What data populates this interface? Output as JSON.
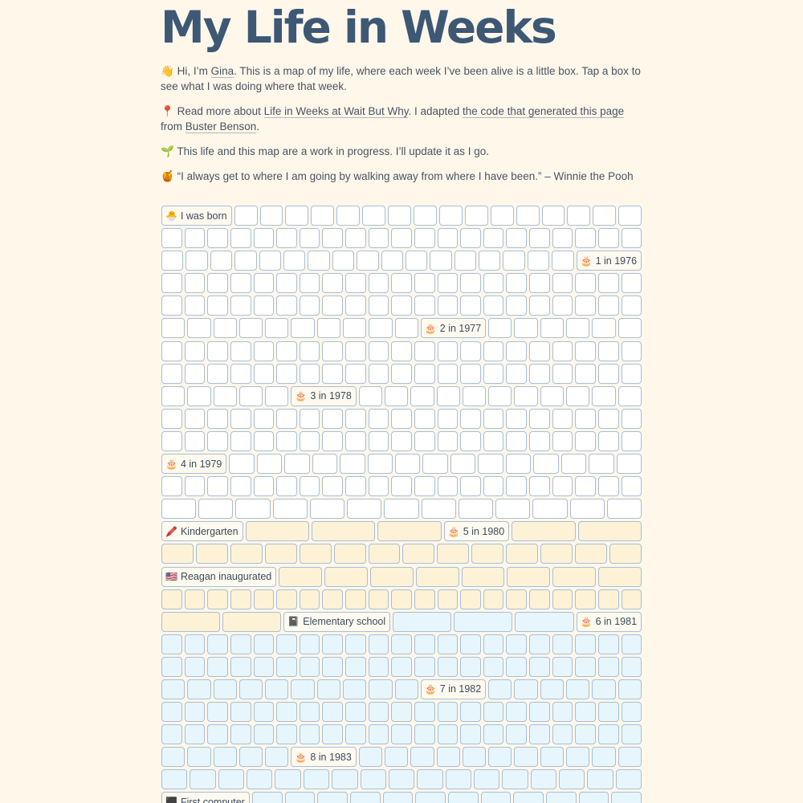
{
  "page": {
    "title": "My Life in Weeks",
    "intro": {
      "p1": {
        "emoji": "👋",
        "before": "Hi, I’m ",
        "name_link": "Gina",
        "after": ". This is a map of my life, where each week I’ve been alive is a little box. Tap a box to see what I was doing where that week."
      },
      "p2": {
        "emoji": "📍",
        "before": "Read more about ",
        "link1": "Life in Weeks at Wait But Why",
        "middle": ". I adapted ",
        "link2": "the code that generated this page",
        "middle2": " from ",
        "link3": "Buster Benson",
        "after": "."
      },
      "p3": {
        "emoji": "🌱",
        "text": "This life and this map are a work in progress. I’ll update it as I go."
      },
      "p4": {
        "emoji": "🍯",
        "text": "“I always get to where I am going by walking away from where I have been.” – Winnie the Pooh"
      }
    }
  },
  "colors": {
    "background": "#fef7ea",
    "heading": "#3d5875",
    "box_border": "#a8bed6",
    "box_white": "#ffffff",
    "box_yellow": "#fdf2d6",
    "box_blue": "#e6f6fc"
  },
  "weeks": {
    "rows": [
      {
        "fill": "white",
        "count": 17,
        "events": [
          {
            "pos": 0,
            "emoji": "🐣",
            "label": "I was born"
          }
        ]
      },
      {
        "fill": "white",
        "count": 21,
        "events": []
      },
      {
        "fill": "white",
        "count": 18,
        "events": [
          {
            "pos": 17,
            "emoji": "🎂",
            "label": "1 in 1976"
          }
        ]
      },
      {
        "fill": "white",
        "count": 21,
        "events": []
      },
      {
        "fill": "white",
        "count": 21,
        "events": []
      },
      {
        "fill": "white",
        "count": 17,
        "events": [
          {
            "pos": 10,
            "emoji": "🎂",
            "label": "2 in 1977"
          }
        ]
      },
      {
        "fill": "white",
        "count": 21,
        "events": []
      },
      {
        "fill": "white",
        "count": 21,
        "events": []
      },
      {
        "fill": "white",
        "count": 17,
        "events": [
          {
            "pos": 5,
            "emoji": "🎂",
            "label": "3 in 1978"
          }
        ]
      },
      {
        "fill": "white",
        "count": 21,
        "events": []
      },
      {
        "fill": "white",
        "count": 21,
        "events": []
      },
      {
        "fill": "white",
        "count": 16,
        "events": [
          {
            "pos": 0,
            "emoji": "🎂",
            "label": "4 in 1979"
          }
        ]
      },
      {
        "fill": "white",
        "count": 21,
        "events": []
      },
      {
        "fill": "white",
        "count": 13,
        "events": []
      },
      {
        "fill": "yellow",
        "count": 7,
        "events": [
          {
            "pos": 0,
            "emoji": "🖍️",
            "label": "Kindergarten"
          },
          {
            "pos": 4,
            "emoji": "🎂",
            "label": "5 in 1980"
          }
        ]
      },
      {
        "fill": "yellow",
        "count": 14,
        "events": []
      },
      {
        "fill": "yellow",
        "count": 9,
        "events": [
          {
            "pos": 0,
            "emoji": "🇺🇸",
            "label": "Reagan inaugurated"
          }
        ]
      },
      {
        "fill": "yellow",
        "count": 21,
        "events": []
      },
      {
        "fill": "yellow",
        "count": 7,
        "events": [
          {
            "pos": 2,
            "emoji": "📓",
            "label": "Elementary school",
            "fill": "blue"
          },
          {
            "pos": 6,
            "emoji": "🎂",
            "label": "6 in 1981",
            "fill": "blue"
          }
        ],
        "fill_after": 3,
        "fill_after_color": "blue"
      },
      {
        "fill": "blue",
        "count": 21,
        "events": []
      },
      {
        "fill": "blue",
        "count": 21,
        "events": []
      },
      {
        "fill": "blue",
        "count": 17,
        "events": [
          {
            "pos": 10,
            "emoji": "🎂",
            "label": "7 in 1982"
          }
        ]
      },
      {
        "fill": "blue",
        "count": 21,
        "events": []
      },
      {
        "fill": "blue",
        "count": 21,
        "events": []
      },
      {
        "fill": "blue",
        "count": 17,
        "events": [
          {
            "pos": 5,
            "emoji": "🎂",
            "label": "8 in 1983"
          }
        ]
      },
      {
        "fill": "blue",
        "count": 17,
        "events": []
      },
      {
        "fill": "blue",
        "count": 13,
        "events": [
          {
            "pos": 0,
            "emoji": "⬛",
            "label": "First computer"
          }
        ]
      }
    ]
  }
}
